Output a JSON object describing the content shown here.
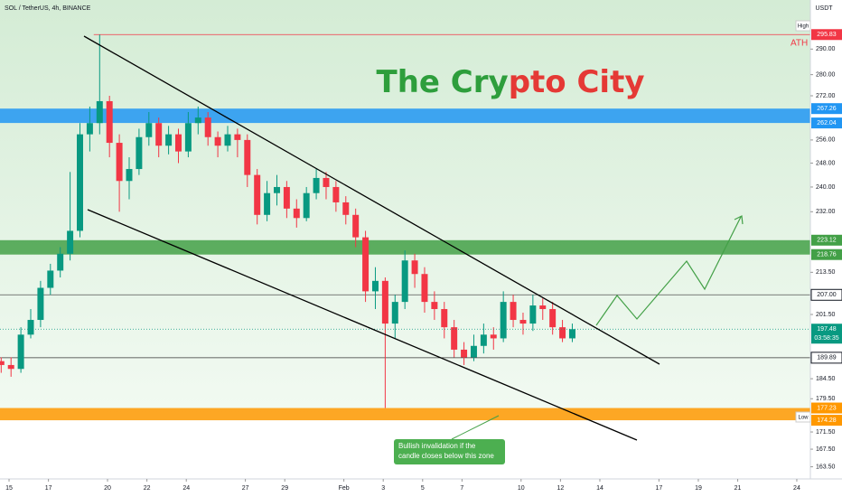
{
  "header": {
    "symbol": "SOL / TetherUS, 4h, BINANCE",
    "currency": "USDT",
    "high_tag": "High",
    "low_tag": "Low",
    "ath": "ATH",
    "title_parts": [
      "The Cry",
      "pto City"
    ],
    "note_lines": [
      "Bullish invalidation if the",
      "candle closes below this zone"
    ]
  },
  "chart_data": {
    "type": "candlestick",
    "log_scale": true,
    "grid": false,
    "up_color": "#089981",
    "down_color": "#f23645",
    "xlim": [
      14.54,
      55.69
    ],
    "xticks": [
      15,
      17,
      20,
      22,
      24,
      27,
      29,
      {
        "value": 32,
        "label": "Feb"
      },
      {
        "value": 34,
        "label": "3"
      },
      {
        "value": 36,
        "label": "5"
      },
      {
        "value": 38,
        "label": "7"
      },
      {
        "value": 41,
        "label": "10"
      },
      {
        "value": 43,
        "label": "12"
      },
      {
        "value": 45,
        "label": "14"
      },
      {
        "value": 48,
        "label": "17"
      },
      {
        "value": 50,
        "label": "19"
      },
      {
        "value": 52,
        "label": "21"
      },
      {
        "value": 55,
        "label": "24"
      }
    ],
    "ylim": [
      160.8,
      310.2
    ],
    "yticks": [
      {
        "value": 290,
        "label": "290.00"
      },
      {
        "value": 280,
        "label": "280.00"
      },
      {
        "value": 272,
        "label": "272.00"
      },
      {
        "value": 256,
        "label": "256.00"
      },
      {
        "value": 248,
        "label": "248.00"
      },
      {
        "value": 240,
        "label": "240.00"
      },
      {
        "value": 232,
        "label": "232.00"
      },
      {
        "value": 213.5,
        "label": "213.50"
      },
      {
        "value": 201.5,
        "label": "201.50"
      },
      {
        "value": 184.5,
        "label": "184.50"
      },
      {
        "value": 179.5,
        "label": "179.50"
      },
      {
        "value": 171.5,
        "label": "171.50"
      },
      {
        "value": 167.5,
        "label": "167.50"
      },
      {
        "value": 163.5,
        "label": "163.50"
      }
    ],
    "zones": [
      {
        "lo": 262.04,
        "hi": 267.26,
        "color": "#2196f3"
      },
      {
        "lo": 218.76,
        "hi": 223.12,
        "color": "#43a047"
      },
      {
        "lo": 174.28,
        "hi": 177.23,
        "color": "#ff9800"
      }
    ],
    "levels": [
      {
        "value": 295.83,
        "color": "#f23645",
        "from": 19.3
      },
      {
        "value": 207,
        "label": "207.00",
        "color": "#555555",
        "from": 14.54
      },
      {
        "value": 189.89,
        "color": "#333333",
        "from": 14.54
      }
    ],
    "last": 197.48,
    "countdown": "03:58:35",
    "x": [
      14.6,
      15.1,
      15.6,
      16.1,
      16.6,
      17.1,
      17.6,
      18.1,
      18.6,
      19.1,
      19.6,
      20.1,
      20.6,
      21.1,
      21.6,
      22.1,
      22.6,
      23.1,
      23.6,
      24.1,
      24.6,
      25.1,
      25.6,
      26.1,
      26.6,
      27.1,
      27.6,
      28.1,
      28.6,
      29.1,
      29.6,
      30.1,
      30.6,
      31.1,
      31.6,
      32.1,
      32.6,
      33.1,
      33.6,
      34.1,
      34.6,
      35.1,
      35.6,
      36.1,
      36.6,
      37.1,
      37.6,
      38.1,
      38.6,
      39.1,
      39.6,
      40.1,
      40.6,
      41.1,
      41.6,
      42.1,
      42.6,
      43.1,
      43.6
    ],
    "candles": [
      [
        189,
        190,
        186,
        188
      ],
      [
        188,
        190,
        185,
        187
      ],
      [
        187,
        198,
        186,
        196
      ],
      [
        196,
        203,
        195,
        200
      ],
      [
        200,
        211,
        198,
        209
      ],
      [
        209,
        216,
        207,
        214
      ],
      [
        214,
        221,
        212,
        219
      ],
      [
        219,
        245,
        217,
        226
      ],
      [
        226,
        262,
        224,
        258
      ],
      [
        258,
        268,
        252,
        262
      ],
      [
        262,
        295.83,
        258,
        270
      ],
      [
        270,
        272,
        250,
        255
      ],
      [
        255,
        258,
        232,
        242
      ],
      [
        242,
        250,
        236,
        246
      ],
      [
        246,
        260,
        244,
        257
      ],
      [
        257,
        266,
        254,
        262
      ],
      [
        262,
        264,
        250,
        254
      ],
      [
        254,
        261,
        251,
        258
      ],
      [
        258,
        260,
        248,
        252
      ],
      [
        252,
        266,
        250,
        262
      ],
      [
        262,
        268,
        258,
        264
      ],
      [
        264,
        266,
        254,
        257
      ],
      [
        257,
        259,
        250,
        254
      ],
      [
        254,
        261,
        252,
        258
      ],
      [
        258,
        260,
        250,
        256
      ],
      [
        256,
        258,
        240,
        244
      ],
      [
        244,
        246,
        228,
        231
      ],
      [
        231,
        242,
        229,
        238
      ],
      [
        238,
        244,
        234,
        240
      ],
      [
        240,
        242,
        230,
        233
      ],
      [
        233,
        236,
        227,
        230
      ],
      [
        230,
        240,
        229,
        238
      ],
      [
        238,
        246,
        236,
        243
      ],
      [
        243,
        245,
        236,
        240
      ],
      [
        240,
        242,
        232,
        235
      ],
      [
        235,
        237,
        228,
        231
      ],
      [
        231,
        233,
        221,
        224
      ],
      [
        224,
        226,
        205,
        208
      ],
      [
        208,
        215,
        203,
        211
      ],
      [
        211,
        212,
        177.23,
        199
      ],
      [
        199,
        207,
        195,
        205
      ],
      [
        205,
        220,
        203,
        217
      ],
      [
        217,
        219,
        209,
        213
      ],
      [
        213,
        215,
        202,
        205
      ],
      [
        205,
        208,
        200,
        203
      ],
      [
        203,
        205,
        195,
        198
      ],
      [
        198,
        200,
        190,
        192
      ],
      [
        192,
        194,
        188,
        190
      ],
      [
        190,
        196,
        189,
        193
      ],
      [
        193,
        199,
        191,
        196
      ],
      [
        196,
        198,
        192,
        195
      ],
      [
        195,
        208,
        194,
        205
      ],
      [
        205,
        207,
        198,
        200
      ],
      [
        200,
        202,
        196,
        199
      ],
      [
        199,
        207,
        197,
        204
      ],
      [
        204,
        206,
        200,
        203
      ],
      [
        203,
        205,
        196,
        198
      ],
      [
        198,
        200,
        194,
        195
      ],
      [
        195,
        199,
        194,
        197.48
      ]
    ]
  }
}
